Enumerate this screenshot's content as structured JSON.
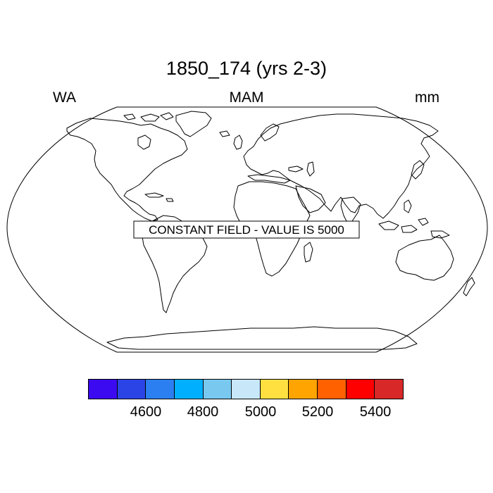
{
  "title": "1850_174 (yrs 2-3)",
  "left_string": "WA",
  "center_string": "MAM",
  "right_string": "mm",
  "map_message": "CONSTANT FIELD - VALUE IS 5000",
  "colorbar": {
    "colors": [
      "#3c0af0",
      "#2b44e6",
      "#2b7ff0",
      "#00b0ff",
      "#78c8f0",
      "#c8e8fa",
      "#ffe040",
      "#ffa400",
      "#ff6000",
      "#ff0000",
      "#d82828"
    ],
    "labels": [
      "4600",
      "4800",
      "5000",
      "5200",
      "5400"
    ]
  }
}
